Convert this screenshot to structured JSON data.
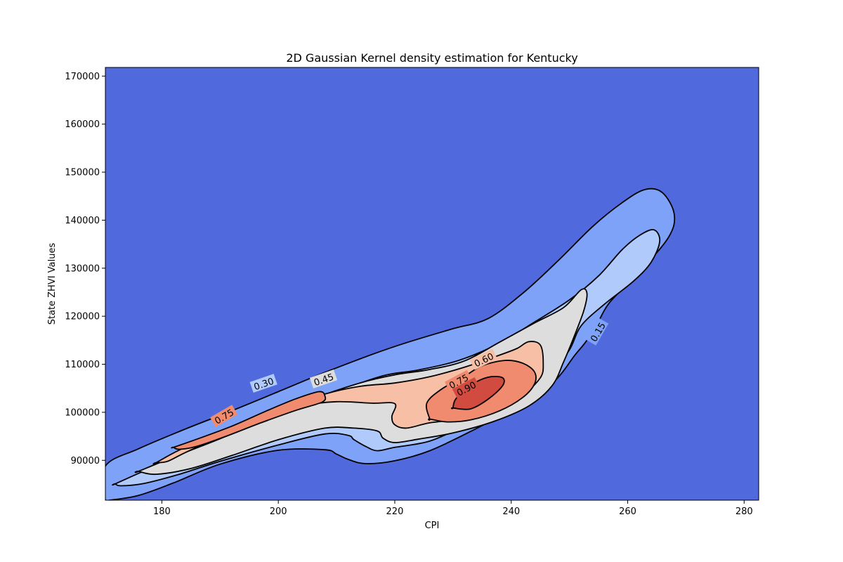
{
  "chart_data": {
    "type": "contour",
    "title": "2D Gaussian Kernel density estimation for Kentucky",
    "xlabel": "CPI",
    "ylabel": "State ZHVI Values",
    "xlim": [
      170.3,
      282.5
    ],
    "ylim": [
      81700,
      171800
    ],
    "xticks": [
      180,
      200,
      220,
      240,
      260,
      280
    ],
    "yticks": [
      90000,
      100000,
      110000,
      120000,
      130000,
      140000,
      150000,
      160000,
      170000
    ],
    "grid": false,
    "background_color": "#5069dc",
    "line_color": "#000000",
    "levels": [
      {
        "level": 0.15,
        "fill": "#7ea2f8",
        "paths": [
          [
            [
              170.3,
              88800
            ],
            [
              176,
              92400
            ],
            [
              184,
              96500
            ],
            [
              192,
              100300
            ],
            [
              200,
              104300
            ],
            [
              208,
              108300
            ],
            [
              216,
              112000
            ],
            [
              222,
              114500
            ],
            [
              230,
              117400
            ],
            [
              236,
              119500
            ],
            [
              242,
              124800
            ],
            [
              248,
              131500
            ],
            [
              254,
              138700
            ],
            [
              259,
              143600
            ],
            [
              263,
              146400
            ],
            [
              266,
              145700
            ],
            [
              268,
              141200
            ],
            [
              267,
              136400
            ],
            [
              262,
              129200
            ],
            [
              257,
              123000
            ],
            [
              255,
              119000
            ],
            [
              253,
              115000
            ],
            [
              251,
              112000
            ],
            [
              247,
              106000
            ],
            [
              240,
              100500
            ],
            [
              233,
              96000
            ],
            [
              226,
              92000
            ],
            [
              220,
              89900
            ],
            [
              215,
              89300
            ],
            [
              212,
              90200
            ],
            [
              210,
              91300
            ],
            [
              208,
              92200
            ],
            [
              200,
              92100
            ],
            [
              190,
              89200
            ],
            [
              182,
              85300
            ],
            [
              176,
              82700
            ],
            [
              171,
              81700
            ],
            [
              170.3,
              81700
            ]
          ]
        ],
        "labels": [
          {
            "text": "0.15",
            "x": 254.9,
            "y": 116700,
            "angle": -60
          }
        ]
      },
      {
        "level": 0.3,
        "fill": "#b0cbfb",
        "paths": [
          [
            [
              172,
              85100
            ],
            [
              178,
              88300
            ],
            [
              186,
              91800
            ],
            [
              194,
              95600
            ],
            [
              202,
              99900
            ],
            [
              210,
              104200
            ],
            [
              218,
              107600
            ],
            [
              224,
              108800
            ],
            [
              231,
              110800
            ],
            [
              238,
              114400
            ],
            [
              244,
              118800
            ],
            [
              250,
              123400
            ],
            [
              255,
              128400
            ],
            [
              259,
              133800
            ],
            [
              262,
              136800
            ],
            [
              264.5,
              138000
            ],
            [
              265.5,
              135600
            ],
            [
              264,
              131200
            ],
            [
              261,
              127300
            ],
            [
              256,
              122500
            ],
            [
              252,
              118000
            ],
            [
              250,
              113000
            ],
            [
              247,
              108500
            ],
            [
              243,
              104200
            ],
            [
              238,
              100500
            ],
            [
              232,
              97200
            ],
            [
              226,
              94000
            ],
            [
              220,
              92700
            ],
            [
              217,
              92000
            ],
            [
              215,
              92900
            ],
            [
              213,
              94300
            ],
            [
              212,
              95200
            ],
            [
              208,
              95500
            ],
            [
              200,
              93200
            ],
            [
              190,
              89800
            ],
            [
              183,
              87100
            ],
            [
              177,
              85200
            ],
            [
              173,
              84700
            ],
            [
              172,
              85100
            ]
          ]
        ],
        "labels": [
          {
            "text": "0.30",
            "x": 197.5,
            "y": 105900,
            "angle": -19
          }
        ]
      },
      {
        "level": 0.45,
        "fill": "#dddddd",
        "paths": [
          [
            [
              176,
              87700
            ],
            [
              182,
              90700
            ],
            [
              190,
              94500
            ],
            [
              198,
              98600
            ],
            [
              206,
              102800
            ],
            [
              214,
              106100
            ],
            [
              220,
              107800
            ],
            [
              226,
              108900
            ],
            [
              232,
              110700
            ],
            [
              238,
              114600
            ],
            [
              244,
              118600
            ],
            [
              249,
              121800
            ],
            [
              252,
              125500
            ],
            [
              253,
              124800
            ],
            [
              252.5,
              121300
            ],
            [
              251,
              116400
            ],
            [
              249,
              110500
            ],
            [
              247,
              105500
            ],
            [
              243,
              101300
            ],
            [
              237,
              98100
            ],
            [
              230,
              95700
            ],
            [
              224,
              94400
            ],
            [
              220,
              93700
            ],
            [
              218,
              94600
            ],
            [
              217,
              96100
            ],
            [
              213,
              96700
            ],
            [
              208,
              96700
            ],
            [
              200,
              94300
            ],
            [
              192,
              91000
            ],
            [
              185,
              88300
            ],
            [
              179,
              87100
            ],
            [
              176,
              87700
            ]
          ]
        ],
        "labels": [
          {
            "text": "0.45",
            "x": 207.8,
            "y": 106800,
            "angle": -19
          }
        ]
      },
      {
        "level": 0.6,
        "fill": "#f6bfa6",
        "paths": [
          [
            [
              179,
              89500
            ],
            [
              184,
              92700
            ],
            [
              192,
              96300
            ],
            [
              200,
              100600
            ],
            [
              208,
              103800
            ],
            [
              214,
              105400
            ],
            [
              220,
              106100
            ],
            [
              226,
              107400
            ],
            [
              232,
              109400
            ],
            [
              238,
              111900
            ],
            [
              241,
              113300
            ],
            [
              243,
              114700
            ],
            [
              245,
              114000
            ],
            [
              245.5,
              110200
            ],
            [
              245,
              107200
            ],
            [
              242,
              103800
            ],
            [
              237,
              101200
            ],
            [
              232,
              98800
            ],
            [
              226,
              97800
            ],
            [
              222,
              96700
            ],
            [
              220,
              97400
            ],
            [
              219.5,
              99100
            ],
            [
              220,
              101800
            ],
            [
              216,
              101900
            ],
            [
              210,
              102200
            ],
            [
              204,
              101300
            ],
            [
              198,
              99000
            ],
            [
              190,
              94900
            ],
            [
              184,
              91600
            ],
            [
              181,
              89800
            ],
            [
              179,
              89500
            ]
          ]
        ],
        "labels": [
          {
            "text": "0.60",
            "x": 235.3,
            "y": 110900,
            "angle": -26
          }
        ]
      },
      {
        "level": 0.75,
        "fill": "#f08b6f",
        "paths": [
          [
            [
              182,
              92700
            ],
            [
              186,
              94400
            ],
            [
              192,
              97100
            ],
            [
              198,
              100300
            ],
            [
              203,
              102800
            ],
            [
              207,
              104300
            ],
            [
              208,
              103400
            ],
            [
              207.5,
              102100
            ],
            [
              203,
              100400
            ],
            [
              197,
              97800
            ],
            [
              191,
              95000
            ],
            [
              186,
              92900
            ],
            [
              183,
              92300
            ],
            [
              182,
              92700
            ]
          ],
          [
            [
              226,
              98600
            ],
            [
              229,
              98000
            ],
            [
              233,
              98400
            ],
            [
              238,
              100300
            ],
            [
              242,
              103100
            ],
            [
              244,
              105900
            ],
            [
              244,
              108400
            ],
            [
              242,
              110200
            ],
            [
              239,
              110800
            ],
            [
              235,
              109700
            ],
            [
              232,
              107500
            ],
            [
              228,
              104800
            ],
            [
              225.5,
              101900
            ],
            [
              226,
              98600
            ]
          ]
        ],
        "labels": [
          {
            "text": "0.75",
            "x": 190.7,
            "y": 99100,
            "angle": -30
          },
          {
            "text": "0.75",
            "x": 231.0,
            "y": 106400,
            "angle": -28
          }
        ]
      },
      {
        "level": 0.9,
        "fill": "#d24b40",
        "paths": [
          [
            [
              230,
              100900
            ],
            [
              233,
              100700
            ],
            [
              236,
              102700
            ],
            [
              238.5,
              105500
            ],
            [
              238.5,
              107200
            ],
            [
              236,
              107300
            ],
            [
              233,
              105600
            ],
            [
              230.5,
              102800
            ],
            [
              230,
              100900
            ]
          ]
        ],
        "labels": [
          {
            "text": "0.90",
            "x": 232.3,
            "y": 104900,
            "angle": -28
          }
        ]
      }
    ]
  }
}
